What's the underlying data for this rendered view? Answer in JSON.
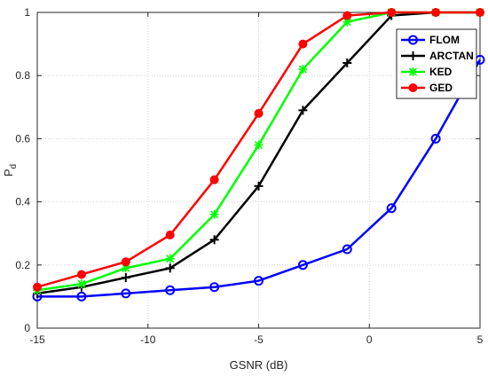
{
  "chart_data": {
    "type": "line",
    "title": "",
    "xlabel": "GSNR (dB)",
    "ylabel": "P",
    "ylabel_sub": "d",
    "xlim": [
      -15,
      5
    ],
    "ylim": [
      0,
      1
    ],
    "xticks": [
      -15,
      -10,
      -5,
      0,
      5
    ],
    "yticks": [
      0,
      0.2,
      0.4,
      0.6,
      0.8,
      1
    ],
    "xtick_labels": [
      "-15",
      "-10",
      "-5",
      "0",
      "5"
    ],
    "ytick_labels": [
      "0",
      "0.2",
      "0.4",
      "0.6",
      "0.8",
      "1"
    ],
    "grid": true,
    "legend_position": "top-right",
    "x": [
      -15,
      -13,
      -11,
      -9,
      -7,
      -5,
      -3,
      -1,
      1,
      3,
      5
    ],
    "series": [
      {
        "name": "FLOM",
        "color": "#0000ff",
        "marker": "circle",
        "values": [
          0.1,
          0.1,
          0.11,
          0.12,
          0.13,
          0.15,
          0.2,
          0.25,
          0.38,
          0.6,
          0.85
        ]
      },
      {
        "name": "ARCTAN",
        "color": "#000000",
        "marker": "plus",
        "values": [
          0.11,
          0.13,
          0.16,
          0.19,
          0.28,
          0.45,
          0.69,
          0.84,
          0.99,
          1.0,
          1.0
        ]
      },
      {
        "name": "KED",
        "color": "#00ff00",
        "marker": "star",
        "values": [
          0.12,
          0.14,
          0.19,
          0.22,
          0.36,
          0.58,
          0.82,
          0.97,
          1.0,
          1.0,
          1.0
        ]
      },
      {
        "name": "GED",
        "color": "#ff0000",
        "marker": "filled-circle",
        "values": [
          0.13,
          0.17,
          0.21,
          0.295,
          0.47,
          0.68,
          0.9,
          0.99,
          1.0,
          1.0,
          1.0
        ]
      }
    ]
  }
}
